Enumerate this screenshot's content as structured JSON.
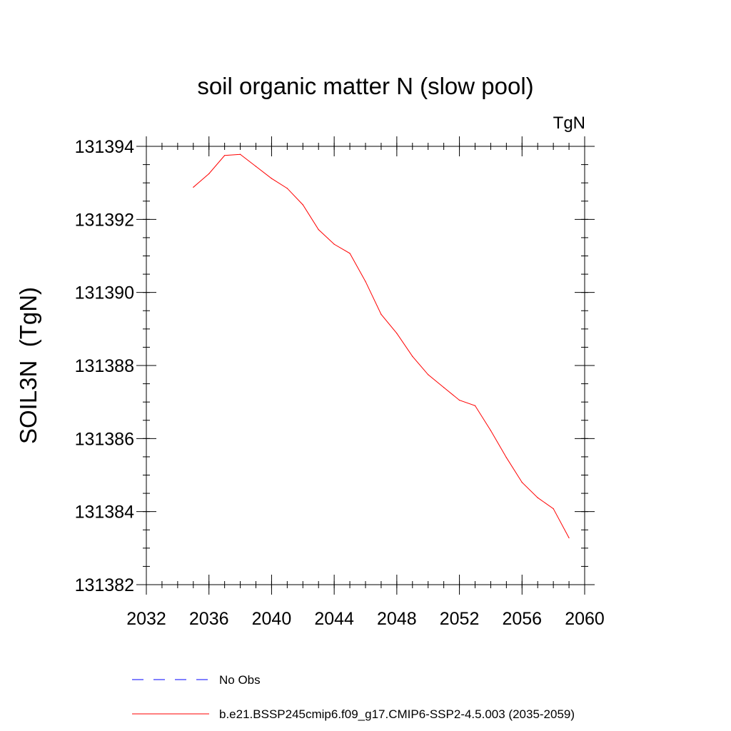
{
  "chart_data": {
    "type": "line",
    "title": "soil organic matter N (slow pool)",
    "units_label": "TgN",
    "ylabel": "SOIL3N  (TgN)",
    "xlabel": "",
    "xlim": [
      2032,
      2060
    ],
    "ylim": [
      131382,
      131394
    ],
    "x_ticks": [
      2032,
      2036,
      2040,
      2044,
      2048,
      2052,
      2056,
      2060
    ],
    "y_ticks": [
      131382,
      131384,
      131386,
      131388,
      131390,
      131392,
      131394
    ],
    "x_minor_step": 1,
    "y_minor_step": 0.5,
    "grid": false,
    "legend_position": "bottom",
    "series": [
      {
        "name": "No Obs",
        "color": "#0000ff",
        "style": "dashed",
        "x": [],
        "y": []
      },
      {
        "name": "b.e21.BSSP245cmip6.f09_g17.CMIP6-SSP2-4.5.003 (2035-2059)",
        "color": "#ff0000",
        "style": "solid",
        "x": [
          2035,
          2036,
          2037,
          2038,
          2039,
          2040,
          2041,
          2042,
          2043,
          2044,
          2045,
          2046,
          2047,
          2048,
          2049,
          2050,
          2051,
          2052,
          2053,
          2054,
          2055,
          2056,
          2057,
          2058,
          2059
        ],
        "y": [
          131392.88,
          131393.25,
          131393.75,
          131393.78,
          131393.45,
          131393.12,
          131392.85,
          131392.4,
          131391.72,
          131391.32,
          131391.07,
          131390.3,
          131389.4,
          131388.88,
          131388.25,
          131387.75,
          131387.4,
          131387.05,
          131386.9,
          131386.22,
          131385.48,
          131384.8,
          131384.38,
          131384.08,
          131383.28
        ]
      }
    ]
  }
}
